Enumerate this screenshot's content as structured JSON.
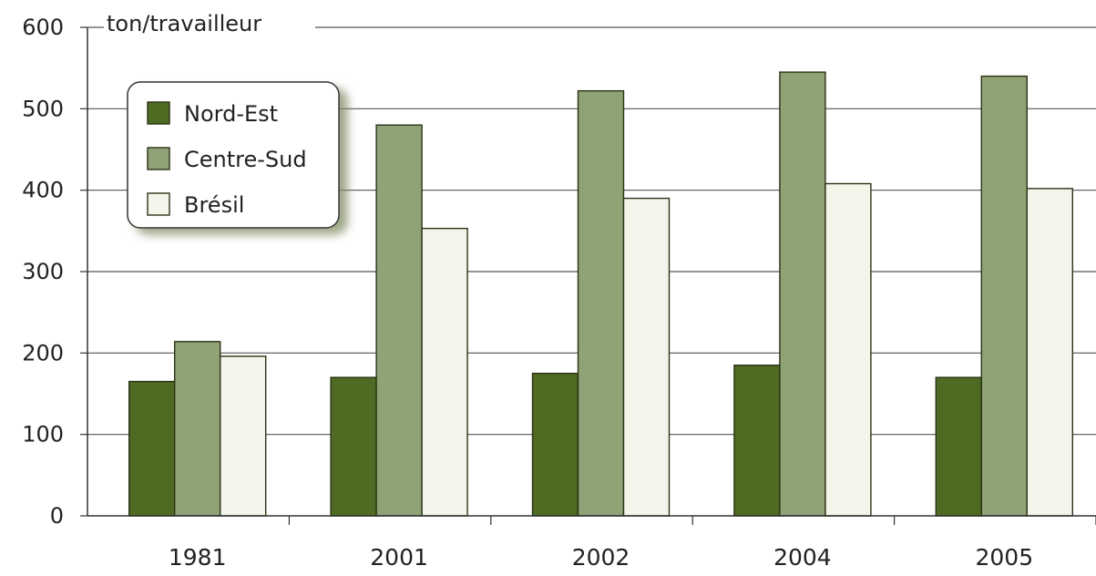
{
  "chart_data": {
    "type": "bar",
    "unit_label": "ton/travailleur",
    "categories": [
      "1981",
      "2001",
      "2002",
      "2004",
      "2005"
    ],
    "series": [
      {
        "name": "Nord-Est",
        "color": "#4e6a23",
        "values": [
          165,
          170,
          175,
          185,
          170
        ]
      },
      {
        "name": "Centre-Sud",
        "color": "#8fa377",
        "values": [
          214,
          480,
          522,
          545,
          540
        ]
      },
      {
        "name": "Brésil",
        "color": "#f4f5ea",
        "values": [
          196,
          353,
          390,
          408,
          402
        ]
      }
    ],
    "yticks": [
      0,
      100,
      200,
      300,
      400,
      500,
      600
    ],
    "ylim": [
      0,
      600
    ],
    "grid": true,
    "legend_position": "top-left"
  }
}
